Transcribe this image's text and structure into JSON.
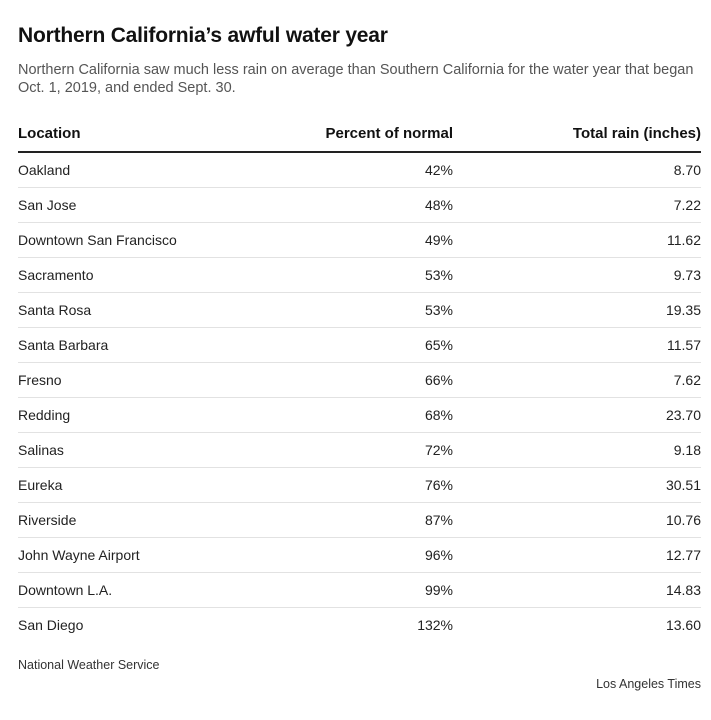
{
  "title": "Northern California’s awful water year",
  "subtitle": "Northern California saw much less rain on average than Southern California for the water year that began Oct. 1, 2019, and ended Sept. 30.",
  "source": "National Weather Service",
  "credit": "Los Angeles Times",
  "chart_data": {
    "type": "table",
    "columns": [
      "Location",
      "Percent of normal",
      "Total rain (inches)"
    ],
    "rows": [
      [
        "Oakland",
        "42%",
        "8.70"
      ],
      [
        "San Jose",
        "48%",
        "7.22"
      ],
      [
        "Downtown San Francisco",
        "49%",
        "11.62"
      ],
      [
        "Sacramento",
        "53%",
        "9.73"
      ],
      [
        "Santa Rosa",
        "53%",
        "19.35"
      ],
      [
        "Santa Barbara",
        "65%",
        "11.57"
      ],
      [
        "Fresno",
        "66%",
        "7.62"
      ],
      [
        "Redding",
        "68%",
        "23.70"
      ],
      [
        "Salinas",
        "72%",
        "9.18"
      ],
      [
        "Eureka",
        "76%",
        "30.51"
      ],
      [
        "Riverside",
        "87%",
        "10.76"
      ],
      [
        "John Wayne Airport",
        "96%",
        "12.77"
      ],
      [
        "Downtown L.A.",
        "99%",
        "14.83"
      ],
      [
        "San Diego",
        "132%",
        "13.60"
      ]
    ]
  }
}
